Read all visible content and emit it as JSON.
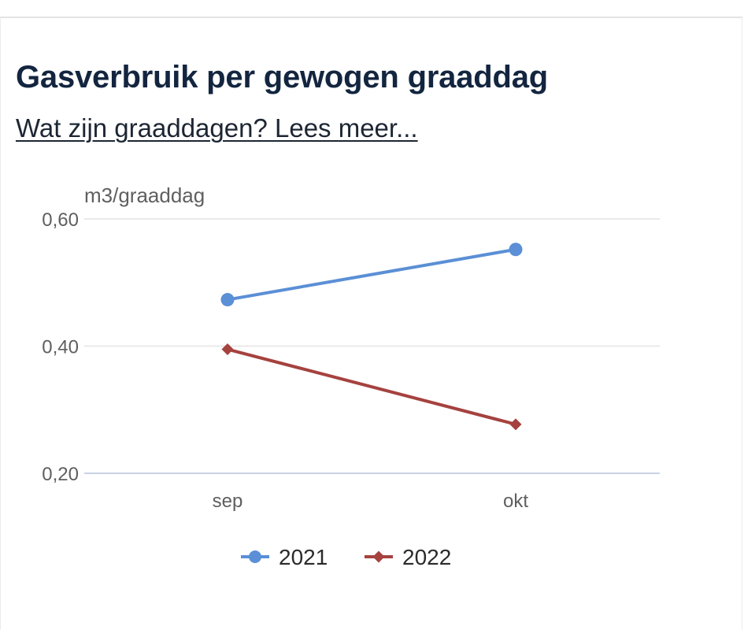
{
  "header": {
    "title": "Gasverbruik per gewogen graaddag",
    "info_link": "Wat zijn graaddagen? Lees meer..."
  },
  "chart_data": {
    "type": "line",
    "title": "Gasverbruik per gewogen graaddag",
    "ylabel": "m3/graaddag",
    "xlabel": "",
    "categories": [
      "sep",
      "okt"
    ],
    "ylim": [
      0.2,
      0.6
    ],
    "yticks": [
      0.2,
      0.4,
      0.6
    ],
    "ytick_labels": [
      "0,20",
      "0,40",
      "0,60"
    ],
    "grid": true,
    "legend_position": "bottom",
    "series": [
      {
        "name": "2021",
        "values": [
          0.473,
          0.552
        ],
        "color": "#5b8fd6",
        "marker": "circle"
      },
      {
        "name": "2022",
        "values": [
          0.395,
          0.277
        ],
        "color": "#a5423f",
        "marker": "diamond"
      }
    ]
  }
}
